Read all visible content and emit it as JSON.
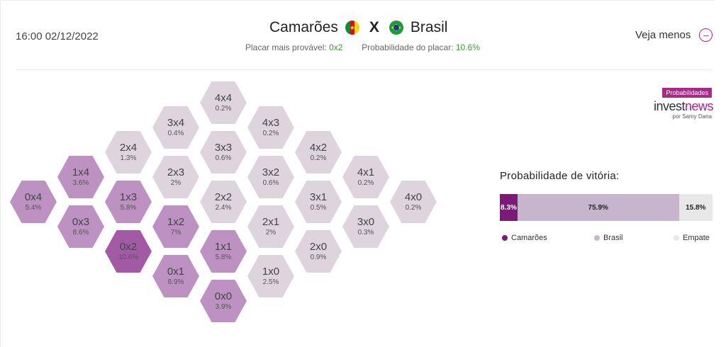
{
  "match": {
    "datetime": "16:00 02/12/2022",
    "team_home": "Camarões",
    "team_away": "Brasil",
    "vs": "X",
    "likely_score_label": "Placar mais provável:",
    "likely_score_value": "0x2",
    "score_prob_label": "Probabilidade do placar:",
    "score_prob_value": "10.6%",
    "toggle_label": "Veja menos"
  },
  "logo": {
    "badge": "Probabilidades",
    "name_part1": "invest",
    "name_part2": "news",
    "byline": "por Samy Dana"
  },
  "colors": {
    "light": "#ddd4de",
    "medium": "#bd92c2",
    "dark": "#a25aa5",
    "camaroes": "#7a1b78",
    "brasil": "#c7b5cd",
    "empate": "#e8e8e8",
    "green": "#3c9b2e",
    "accent": "#b1267f"
  },
  "scores": [
    {
      "score": "4x4",
      "pct": "0.2%",
      "shade": "light"
    },
    {
      "score": "3x4",
      "pct": "0.4%",
      "shade": "light"
    },
    {
      "score": "4x3",
      "pct": "0.2%",
      "shade": "light"
    },
    {
      "score": "2x4",
      "pct": "1.3%",
      "shade": "light"
    },
    {
      "score": "3x3",
      "pct": "0.6%",
      "shade": "light"
    },
    {
      "score": "4x2",
      "pct": "0.2%",
      "shade": "light"
    },
    {
      "score": "1x4",
      "pct": "3.6%",
      "shade": "medium"
    },
    {
      "score": "2x3",
      "pct": "2%",
      "shade": "light"
    },
    {
      "score": "3x2",
      "pct": "0.6%",
      "shade": "light"
    },
    {
      "score": "4x1",
      "pct": "0.2%",
      "shade": "light"
    },
    {
      "score": "0x4",
      "pct": "5.4%",
      "shade": "medium"
    },
    {
      "score": "1x3",
      "pct": "5.8%",
      "shade": "medium"
    },
    {
      "score": "2x2",
      "pct": "2.4%",
      "shade": "light"
    },
    {
      "score": "3x1",
      "pct": "0.5%",
      "shade": "light"
    },
    {
      "score": "4x0",
      "pct": "0.2%",
      "shade": "light"
    },
    {
      "score": "0x3",
      "pct": "8.6%",
      "shade": "medium"
    },
    {
      "score": "1x2",
      "pct": "7%",
      "shade": "medium"
    },
    {
      "score": "2x1",
      "pct": "2%",
      "shade": "light"
    },
    {
      "score": "3x0",
      "pct": "0.3%",
      "shade": "light"
    },
    {
      "score": "0x2",
      "pct": "10.6%",
      "shade": "dark"
    },
    {
      "score": "1x1",
      "pct": "5.8%",
      "shade": "medium"
    },
    {
      "score": "2x0",
      "pct": "0.9%",
      "shade": "light"
    },
    {
      "score": "0x1",
      "pct": "8.9%",
      "shade": "medium"
    },
    {
      "score": "1x0",
      "pct": "2.5%",
      "shade": "light"
    },
    {
      "score": "0x0",
      "pct": "3.9%",
      "shade": "medium"
    }
  ],
  "victory": {
    "title": "Probabilidade de vitória:",
    "segments": [
      {
        "name": "Camarões",
        "label": "8.3%",
        "value": 8.3
      },
      {
        "name": "Brasil",
        "label": "75.9%",
        "value": 75.9
      },
      {
        "name": "Empate",
        "label": "15.8%",
        "value": 15.8
      }
    ]
  }
}
